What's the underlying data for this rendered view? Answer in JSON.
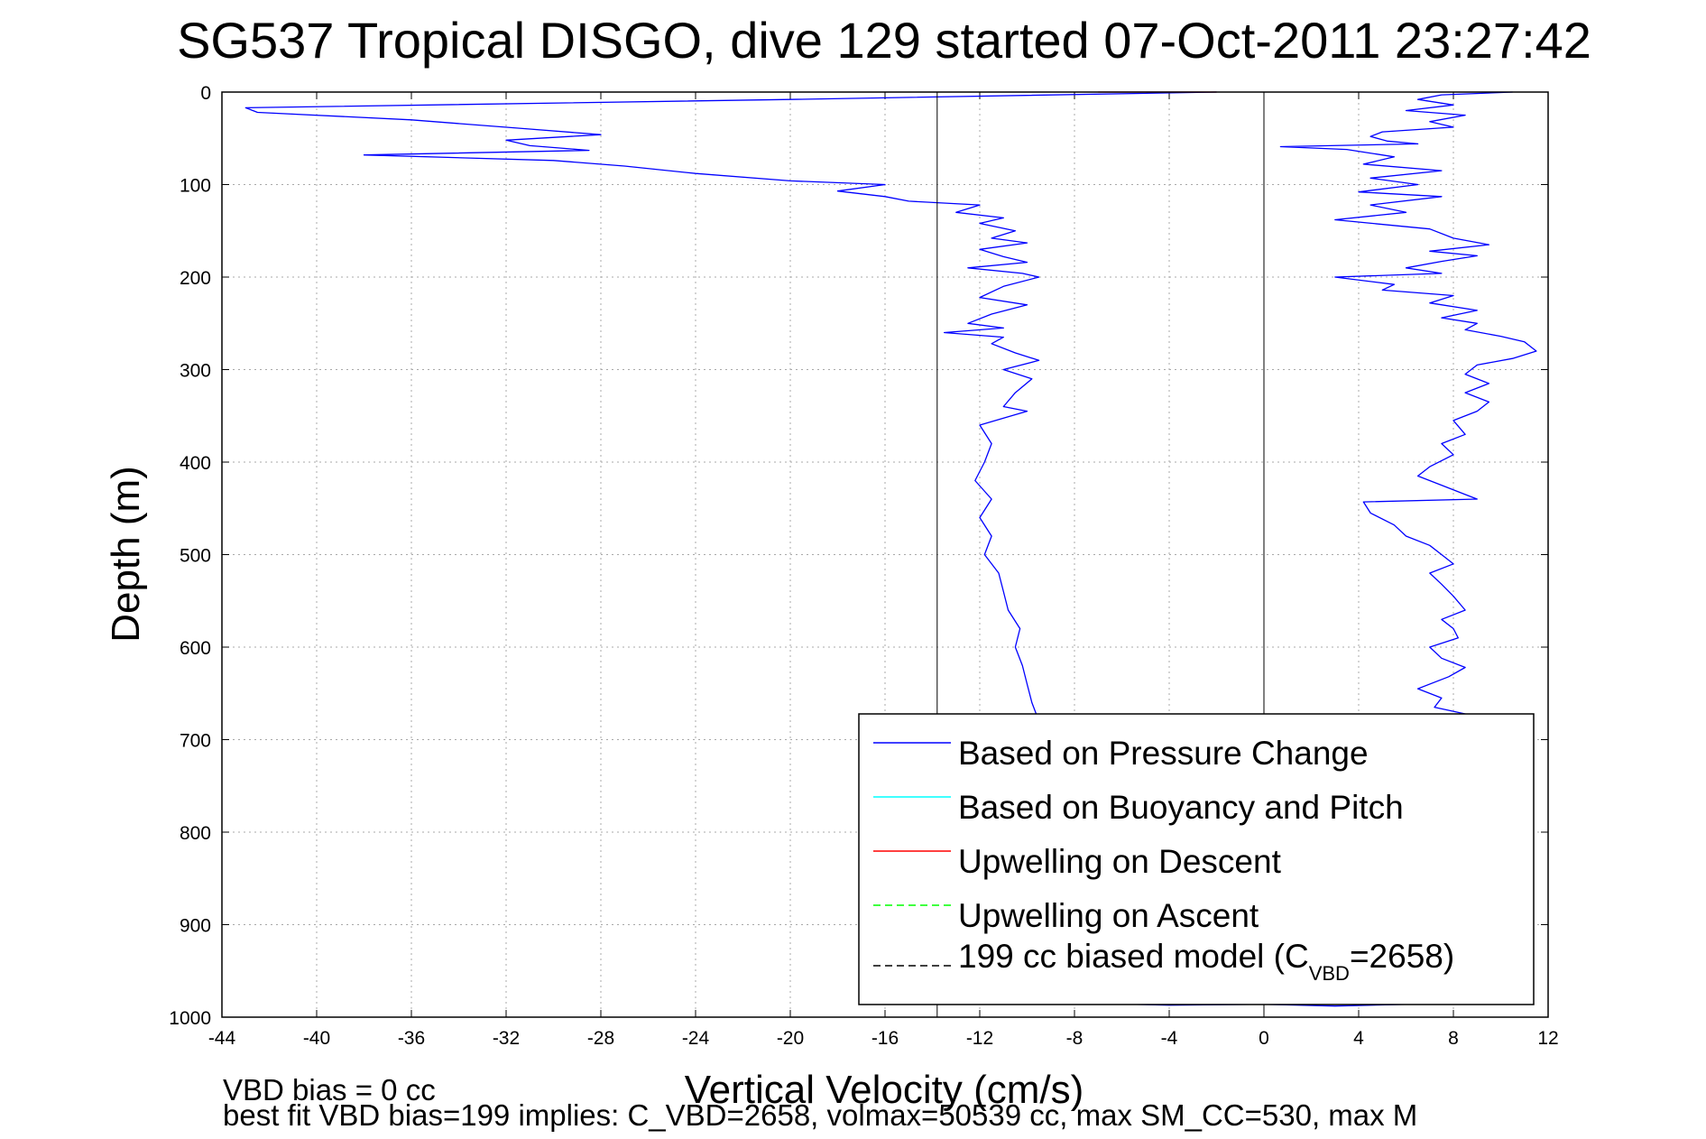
{
  "chart_data": {
    "type": "line",
    "title": "SG537 Tropical DISGO, dive 129 started 07-Oct-2011 23:27:42",
    "xlabel": "Vertical Velocity (cm/s)",
    "ylabel": "Depth (m)",
    "xlim": [
      -44,
      12
    ],
    "ylim": [
      0,
      1000
    ],
    "y_reversed": true,
    "grid": true,
    "x_ticks": [
      "-44",
      "-40",
      "-36",
      "-32",
      "-28",
      "-24",
      "-20",
      "-16",
      "-12",
      "-8",
      "-4",
      "0",
      "4",
      "8",
      "12"
    ],
    "y_ticks": [
      "0",
      "100",
      "200",
      "300",
      "400",
      "500",
      "600",
      "700",
      "800",
      "900",
      "1000"
    ],
    "legend_position": "bottom-right",
    "legend": [
      {
        "label": "Based on Pressure Change",
        "color": "#0000ff",
        "style": "solid"
      },
      {
        "label": "Based on Buoyancy and Pitch",
        "color": "#00ffff",
        "style": "solid"
      },
      {
        "label": "Upwelling on Descent",
        "color": "#ff0000",
        "style": "solid"
      },
      {
        "label": "Upwelling on Ascent",
        "color": "#00ff00",
        "style": "dashed"
      },
      {
        "label_main": "199 cc biased model (C",
        "label_sub": "VBD",
        "label_end": "=2658)",
        "color": "#000000",
        "style": "dashed"
      }
    ],
    "series": [
      {
        "name": "Based on Pressure Change",
        "segment": "descent",
        "points": [
          [
            -2,
            0
          ],
          [
            -20,
            8
          ],
          [
            -43,
            17
          ],
          [
            -42.5,
            22
          ],
          [
            -36,
            30
          ],
          [
            -31,
            40
          ],
          [
            -28,
            46
          ],
          [
            -32,
            52
          ],
          [
            -31,
            58
          ],
          [
            -28.5,
            63
          ],
          [
            -38,
            68
          ],
          [
            -30,
            74
          ],
          [
            -27,
            80
          ],
          [
            -24,
            88
          ],
          [
            -20,
            96
          ],
          [
            -16,
            100
          ],
          [
            -18,
            107
          ],
          [
            -16,
            113
          ],
          [
            -15,
            118
          ],
          [
            -12,
            122
          ],
          [
            -13,
            130
          ],
          [
            -11,
            136
          ],
          [
            -12,
            142
          ],
          [
            -10.5,
            150
          ],
          [
            -11.5,
            158
          ],
          [
            -10,
            163
          ],
          [
            -12,
            170
          ],
          [
            -11,
            178
          ],
          [
            -10,
            184
          ],
          [
            -12.5,
            190
          ],
          [
            -10.2,
            196
          ],
          [
            -9.5,
            200
          ],
          [
            -11,
            210
          ],
          [
            -12,
            222
          ],
          [
            -10,
            230
          ],
          [
            -11.5,
            240
          ],
          [
            -12.5,
            250
          ],
          [
            -11,
            255
          ],
          [
            -13.5,
            260
          ],
          [
            -11,
            265
          ],
          [
            -11.5,
            272
          ],
          [
            -10.5,
            282
          ],
          [
            -9.5,
            290
          ],
          [
            -11,
            300
          ],
          [
            -9.8,
            310
          ],
          [
            -10.5,
            325
          ],
          [
            -11,
            340
          ],
          [
            -10,
            345
          ],
          [
            -12,
            360
          ],
          [
            -11.5,
            380
          ],
          [
            -11.8,
            400
          ],
          [
            -12.2,
            420
          ],
          [
            -11.5,
            440
          ],
          [
            -12,
            460
          ],
          [
            -11.5,
            480
          ],
          [
            -11.8,
            500
          ],
          [
            -11.2,
            520
          ],
          [
            -11,
            540
          ],
          [
            -10.8,
            560
          ],
          [
            -10.3,
            580
          ],
          [
            -10.5,
            600
          ],
          [
            -10.2,
            620
          ],
          [
            -10,
            640
          ],
          [
            -9.8,
            660
          ],
          [
            -9.5,
            680
          ]
        ]
      },
      {
        "name": "Based on Pressure Change",
        "segment": "ascent",
        "points": [
          [
            10.5,
            0
          ],
          [
            7.5,
            3
          ],
          [
            6.5,
            8
          ],
          [
            8,
            14
          ],
          [
            6,
            20
          ],
          [
            8.5,
            25
          ],
          [
            7,
            32
          ],
          [
            8,
            38
          ],
          [
            5,
            43
          ],
          [
            4.5,
            48
          ],
          [
            5.2,
            53
          ],
          [
            6.5,
            56
          ],
          [
            0.7,
            59
          ],
          [
            3.5,
            62
          ],
          [
            5.5,
            70
          ],
          [
            4.2,
            78
          ],
          [
            7.5,
            85
          ],
          [
            4.5,
            93
          ],
          [
            6.5,
            100
          ],
          [
            4,
            108
          ],
          [
            7.5,
            113
          ],
          [
            4.5,
            122
          ],
          [
            6,
            130
          ],
          [
            3,
            138
          ],
          [
            7,
            148
          ],
          [
            8,
            158
          ],
          [
            9.5,
            165
          ],
          [
            7,
            172
          ],
          [
            9,
            177
          ],
          [
            7.5,
            183
          ],
          [
            6,
            190
          ],
          [
            7.5,
            196
          ],
          [
            3,
            200
          ],
          [
            5.5,
            208
          ],
          [
            5,
            214
          ],
          [
            8,
            220
          ],
          [
            7,
            228
          ],
          [
            9,
            236
          ],
          [
            7.5,
            244
          ],
          [
            9,
            250
          ],
          [
            8.5,
            257
          ],
          [
            10,
            264
          ],
          [
            11,
            270
          ],
          [
            11.5,
            280
          ],
          [
            10.5,
            288
          ],
          [
            9,
            295
          ],
          [
            8.5,
            305
          ],
          [
            9.5,
            315
          ],
          [
            8.5,
            325
          ],
          [
            9.5,
            335
          ],
          [
            9,
            345
          ],
          [
            8,
            355
          ],
          [
            8.5,
            370
          ],
          [
            7.5,
            380
          ],
          [
            8,
            392
          ],
          [
            7,
            405
          ],
          [
            6.5,
            415
          ],
          [
            7.5,
            425
          ],
          [
            8.5,
            435
          ],
          [
            9,
            440
          ],
          [
            4.2,
            443
          ],
          [
            4.5,
            455
          ],
          [
            5.5,
            468
          ],
          [
            6,
            480
          ],
          [
            7,
            490
          ],
          [
            7.5,
            500
          ],
          [
            8,
            510
          ],
          [
            7,
            520
          ],
          [
            7.5,
            532
          ],
          [
            8,
            545
          ],
          [
            8.5,
            560
          ],
          [
            7.5,
            570
          ],
          [
            8,
            580
          ],
          [
            8.2,
            590
          ],
          [
            7,
            600
          ],
          [
            7.5,
            612
          ],
          [
            8.5,
            622
          ],
          [
            7.8,
            632
          ],
          [
            6.5,
            645
          ],
          [
            7.5,
            655
          ],
          [
            7.2,
            665
          ],
          [
            9,
            675
          ]
        ]
      },
      {
        "name": "Based on Pressure Change",
        "segment": "bottom",
        "points": [
          [
            -7.5,
            985
          ],
          [
            -4,
            987
          ],
          [
            0,
            986
          ],
          [
            3,
            988
          ],
          [
            8,
            985
          ]
        ]
      },
      {
        "name": "Upwelling on Descent",
        "points": [
          [
            -7,
            0
          ],
          [
            -2,
            0
          ]
        ]
      },
      {
        "name": "199 cc biased model (C_VBD=2658)",
        "points": [
          [
            -13.8,
            0
          ],
          [
            -13.8,
            1000
          ]
        ]
      },
      {
        "name": "zero line",
        "points": [
          [
            0,
            0
          ],
          [
            0,
            1000
          ]
        ]
      }
    ]
  },
  "footer": {
    "line1": "VBD bias = 0 cc",
    "line2": "best fit VBD bias=199 implies: C_VBD=2658, volmax=50539 cc, max SM_CC=530, max M"
  }
}
